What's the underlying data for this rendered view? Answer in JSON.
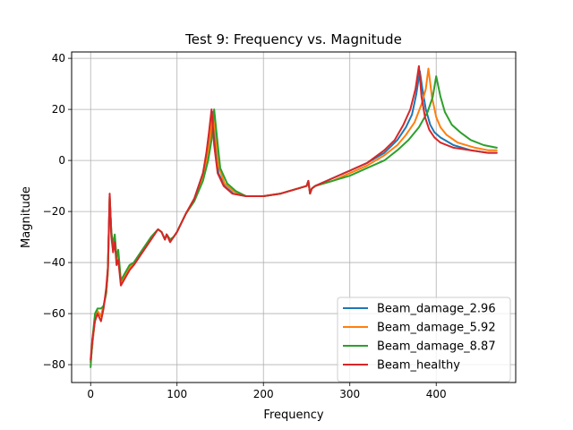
{
  "chart_data": {
    "type": "line",
    "title": "Test 9: Frequency vs. Magnitude",
    "xlabel": "Frequency",
    "ylabel": "Magnitude",
    "xlim": [
      -22,
      492
    ],
    "ylim": [
      -87,
      42.5
    ],
    "xticks": [
      0,
      100,
      200,
      300,
      400
    ],
    "yticks": [
      -80,
      -60,
      -40,
      -20,
      0,
      20,
      40
    ],
    "grid": true,
    "legend_position": "lower-right",
    "series": [
      {
        "name": "Beam_damage_2.96",
        "color": "#1f77b4",
        "x": [
          0,
          2,
          5,
          8,
          12,
          15,
          18,
          20,
          22,
          24,
          26,
          28,
          30,
          32,
          35,
          40,
          45,
          50,
          60,
          70,
          78,
          82,
          86,
          88,
          92,
          96,
          100,
          110,
          120,
          130,
          135,
          138,
          141,
          144,
          148,
          155,
          165,
          180,
          200,
          220,
          240,
          250,
          252,
          254,
          256,
          260,
          280,
          300,
          320,
          340,
          355,
          365,
          372,
          377,
          381,
          384,
          388,
          393,
          398,
          405,
          420,
          440,
          460,
          470
        ],
        "y": [
          -79,
          -72,
          -62,
          -59,
          -61,
          -57,
          -52,
          -44,
          -14,
          -29,
          -34,
          -31,
          -39,
          -37,
          -48,
          -45,
          -42,
          -40,
          -35,
          -30,
          -27,
          -28,
          -31,
          -29,
          -31,
          -30,
          -28,
          -21,
          -15,
          -5,
          3,
          12,
          19,
          7,
          -5,
          -10,
          -13,
          -14,
          -14,
          -13,
          -11,
          -10,
          -8,
          -13,
          -11,
          -10,
          -7,
          -4,
          -1,
          3,
          8,
          13,
          18,
          26,
          35,
          28,
          20,
          14,
          11,
          9,
          6,
          4,
          3,
          3
        ]
      },
      {
        "name": "Beam_damage_5.92",
        "color": "#ff7f0e",
        "x": [
          0,
          2,
          5,
          8,
          12,
          15,
          18,
          20,
          22,
          24,
          26,
          28,
          30,
          32,
          35,
          40,
          45,
          50,
          60,
          70,
          78,
          82,
          86,
          88,
          92,
          96,
          100,
          110,
          120,
          130,
          135,
          138,
          141,
          144,
          148,
          155,
          165,
          180,
          200,
          220,
          240,
          250,
          252,
          254,
          256,
          260,
          280,
          300,
          320,
          340,
          355,
          365,
          375,
          383,
          388,
          391,
          395,
          400,
          405,
          412,
          425,
          445,
          460,
          470
        ],
        "y": [
          -79,
          -72,
          -62,
          -59,
          -61,
          -57,
          -52,
          -44,
          -14,
          -29,
          -34,
          -31,
          -39,
          -37,
          -48,
          -45,
          -42,
          -40,
          -35,
          -30,
          -27,
          -28,
          -31,
          -29,
          -31,
          -30,
          -28,
          -21,
          -15,
          -6,
          1,
          8,
          18,
          12,
          -2,
          -9,
          -12,
          -14,
          -14,
          -13,
          -11,
          -10,
          -8,
          -13,
          -11,
          -10,
          -8,
          -5,
          -2,
          2,
          6,
          10,
          15,
          22,
          28,
          36,
          25,
          17,
          13,
          10,
          7,
          5,
          4,
          4
        ]
      },
      {
        "name": "Beam_damage_8.87",
        "color": "#2ca02c",
        "x": [
          0,
          2,
          5,
          8,
          12,
          15,
          18,
          20,
          22,
          24,
          26,
          28,
          30,
          32,
          35,
          40,
          45,
          50,
          60,
          70,
          78,
          82,
          86,
          88,
          92,
          96,
          100,
          110,
          120,
          130,
          136,
          140,
          143,
          146,
          150,
          158,
          168,
          180,
          200,
          220,
          240,
          250,
          252,
          254,
          256,
          260,
          280,
          300,
          320,
          340,
          355,
          368,
          380,
          390,
          396,
          400,
          405,
          410,
          418,
          428,
          440,
          455,
          470
        ],
        "y": [
          -81,
          -70,
          -60,
          -58,
          -58,
          -57,
          -52,
          -42,
          -15,
          -28,
          -33,
          -29,
          -38,
          -35,
          -47,
          -44,
          -41,
          -40,
          -35,
          -30,
          -27,
          -28,
          -31,
          -29,
          -31,
          -30,
          -28,
          -21,
          -16,
          -8,
          0,
          8,
          20,
          10,
          -3,
          -9,
          -12,
          -14,
          -14,
          -13,
          -11,
          -10,
          -8,
          -13,
          -11,
          -10,
          -8,
          -6,
          -3,
          0,
          4,
          8,
          13,
          19,
          25,
          33,
          25,
          19,
          14,
          11,
          8,
          6,
          5
        ]
      },
      {
        "name": "Beam_healthy",
        "color": "#d62728",
        "x": [
          0,
          2,
          5,
          8,
          12,
          15,
          18,
          20,
          22,
          24,
          26,
          28,
          30,
          32,
          35,
          40,
          45,
          50,
          60,
          70,
          78,
          82,
          86,
          88,
          92,
          96,
          100,
          110,
          120,
          130,
          134,
          137,
          140,
          143,
          147,
          154,
          164,
          180,
          200,
          220,
          240,
          250,
          252,
          254,
          256,
          260,
          280,
          300,
          320,
          340,
          352,
          362,
          370,
          376,
          380,
          383,
          387,
          392,
          398,
          405,
          420,
          440,
          460,
          470
        ],
        "y": [
          -78,
          -70,
          -63,
          -60,
          -63,
          -58,
          -50,
          -42,
          -13,
          -30,
          -36,
          -32,
          -41,
          -39,
          -49,
          -46,
          -43,
          -41,
          -36,
          -31,
          -27,
          -28,
          -31,
          -29,
          -32,
          -30,
          -28,
          -21,
          -15,
          -5,
          3,
          11,
          20,
          6,
          -5,
          -10,
          -13,
          -14,
          -14,
          -13,
          -11,
          -10,
          -8,
          -13,
          -11,
          -10,
          -7,
          -4,
          -1,
          4,
          8,
          14,
          20,
          28,
          37,
          25,
          17,
          12,
          9,
          7,
          5,
          4,
          3,
          3
        ]
      }
    ]
  }
}
